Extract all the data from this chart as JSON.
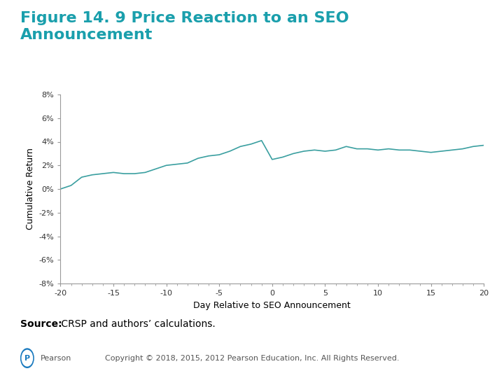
{
  "title_line1": "Figure 14. 9 Price Reaction to an SEO",
  "title_line2": "Announcement",
  "title_color": "#1a9fac",
  "xlabel": "Day Relative to SEO Announcement",
  "ylabel": "Cumulative Return",
  "xlim": [
    -20,
    20
  ],
  "ylim": [
    -0.08,
    0.08
  ],
  "yticks": [
    -0.08,
    -0.06,
    -0.04,
    -0.02,
    0.0,
    0.02,
    0.04,
    0.06,
    0.08
  ],
  "ytick_labels": [
    "-8%",
    "-6%",
    "-4%",
    "-2%",
    "0%",
    "2%",
    "4%",
    "6%",
    "8%"
  ],
  "xticks": [
    -20,
    -15,
    -10,
    -5,
    0,
    5,
    10,
    15,
    20
  ],
  "line_color": "#3a9fa0",
  "source_bold": "Source:",
  "source_normal": " CRSP and authors’ calculations.",
  "copyright_text": "Copyright © 2018, 2015, 2012 Pearson Education, Inc. All Rights Reserved.",
  "background_color": "#ffffff",
  "x_data": [
    -20,
    -19,
    -18,
    -17,
    -16,
    -15,
    -14,
    -13,
    -12,
    -11,
    -10,
    -9,
    -8,
    -7,
    -6,
    -5,
    -4,
    -3,
    -2,
    -1,
    0,
    1,
    2,
    3,
    4,
    5,
    6,
    7,
    8,
    9,
    10,
    11,
    12,
    13,
    14,
    15,
    16,
    17,
    18,
    19,
    20
  ],
  "y_data": [
    0.0,
    0.003,
    0.01,
    0.012,
    0.013,
    0.014,
    0.013,
    0.013,
    0.014,
    0.017,
    0.02,
    0.021,
    0.022,
    0.026,
    0.028,
    0.029,
    0.032,
    0.036,
    0.038,
    0.041,
    0.025,
    0.027,
    0.03,
    0.032,
    0.033,
    0.032,
    0.033,
    0.036,
    0.034,
    0.034,
    0.033,
    0.034,
    0.033,
    0.033,
    0.032,
    0.031,
    0.032,
    0.033,
    0.034,
    0.036,
    0.037
  ],
  "title_fontsize": 16,
  "axis_label_fontsize": 9,
  "tick_fontsize": 8,
  "source_fontsize": 10,
  "copyright_fontsize": 8
}
